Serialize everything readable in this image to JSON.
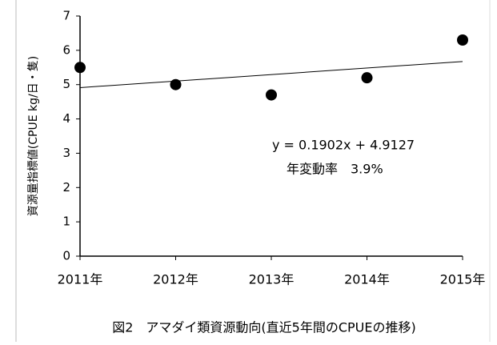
{
  "chart_data": {
    "type": "scatter",
    "title": "図2　アマダイ類資源動向(直近5年間のCPUEの推移)",
    "y_label": "資源量指標値(CPUE kg/日・隻)",
    "categories": [
      "2011年",
      "2012年",
      "2013年",
      "2014年",
      "2015年"
    ],
    "values": [
      5.5,
      5.0,
      4.7,
      5.2,
      6.3
    ],
    "color": "#000000",
    "ylim": [
      0,
      7
    ],
    "yticks": [
      0,
      1,
      2,
      3,
      4,
      5,
      6,
      7
    ],
    "trendline": {
      "slope": 0.1902,
      "intercept": 4.9127,
      "label": "y = 0.1902x + 4.9127"
    },
    "annotation": "年変動率　3.9%"
  }
}
